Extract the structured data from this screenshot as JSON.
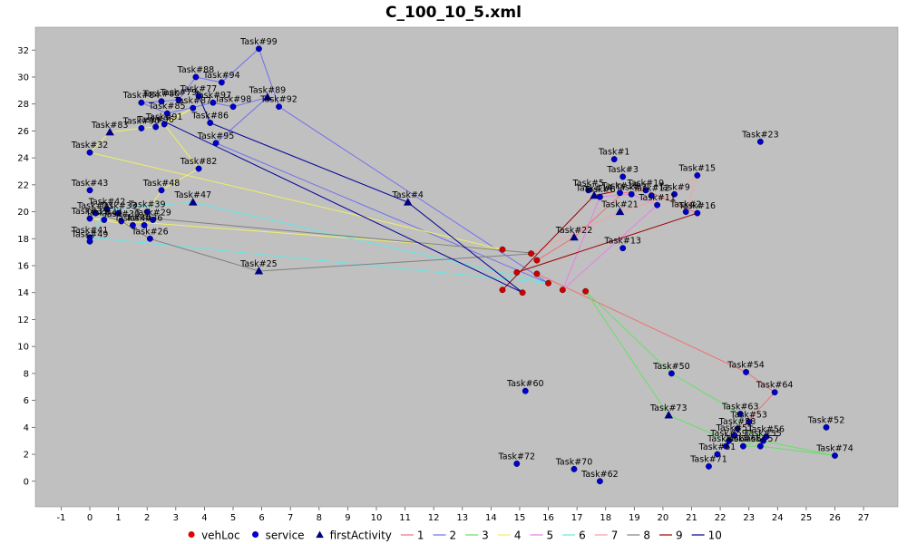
{
  "chart_data": {
    "type": "scatter",
    "title": "C_100_10_5.xml",
    "xlim": [
      -1.9,
      28.2
    ],
    "ylim": [
      -1.9,
      33.7
    ],
    "x_ticks": [
      -1,
      0,
      1,
      2,
      3,
      4,
      5,
      6,
      7,
      8,
      9,
      10,
      11,
      12,
      13,
      14,
      15,
      16,
      17,
      18,
      19,
      20,
      21,
      22,
      23,
      24,
      25,
      26,
      27
    ],
    "y_ticks": [
      0,
      2,
      4,
      6,
      8,
      10,
      12,
      14,
      16,
      18,
      20,
      22,
      24,
      26,
      28,
      30,
      32
    ],
    "grid": false,
    "legend_position": "bottom",
    "colors": {
      "background": "#c0c0c0",
      "vehLoc": "#cc0000",
      "service": "#0000cc",
      "firstActivity": "#000080"
    },
    "legend": [
      {
        "label": "vehLoc",
        "kind": "dot",
        "color": "#e60000"
      },
      {
        "label": "service",
        "kind": "dot",
        "color": "#0000cc"
      },
      {
        "label": "firstActivity",
        "kind": "triangle",
        "color": "#000080"
      },
      {
        "label": "1",
        "kind": "line",
        "color": "#f07070"
      },
      {
        "label": "2",
        "kind": "line",
        "color": "#6f6ff0"
      },
      {
        "label": "3",
        "kind": "line",
        "color": "#66e066"
      },
      {
        "label": "4",
        "kind": "line",
        "color": "#f0f066"
      },
      {
        "label": "5",
        "kind": "line",
        "color": "#e680e6"
      },
      {
        "label": "6",
        "kind": "line",
        "color": "#66e6e6"
      },
      {
        "label": "7",
        "kind": "line",
        "color": "#f5a0a0"
      },
      {
        "label": "8",
        "kind": "line",
        "color": "#808080"
      },
      {
        "label": "9",
        "kind": "line",
        "color": "#a00000"
      },
      {
        "label": "10",
        "kind": "line",
        "color": "#000099"
      }
    ],
    "vehLoc": [
      [
        14.4,
        17.2
      ],
      [
        15.4,
        16.9
      ],
      [
        15.6,
        16.4
      ],
      [
        14.9,
        15.5
      ],
      [
        15.6,
        15.4
      ],
      [
        16.0,
        14.7
      ],
      [
        16.5,
        14.2
      ],
      [
        14.4,
        14.2
      ],
      [
        15.1,
        14.0
      ],
      [
        17.3,
        14.1
      ]
    ],
    "services": [
      {
        "x": 5.9,
        "y": 32.1,
        "label": "Task#99"
      },
      {
        "x": 3.7,
        "y": 30.0,
        "label": "Task#88"
      },
      {
        "x": 4.6,
        "y": 29.6,
        "label": "Task#94"
      },
      {
        "x": 3.8,
        "y": 28.6,
        "label": "Task#77"
      },
      {
        "x": 1.8,
        "y": 28.1,
        "label": "Task#84"
      },
      {
        "x": 2.5,
        "y": 28.2,
        "label": "Task#80"
      },
      {
        "x": 3.1,
        "y": 28.3,
        "label": "Task#79"
      },
      {
        "x": 4.3,
        "y": 28.1,
        "label": "Task#97"
      },
      {
        "x": 5.0,
        "y": 27.8,
        "label": "Task#98"
      },
      {
        "x": 6.6,
        "y": 27.8,
        "label": "Task#92"
      },
      {
        "x": 2.7,
        "y": 27.3,
        "label": "Task#85"
      },
      {
        "x": 3.6,
        "y": 27.7,
        "label": "Task#87"
      },
      {
        "x": 2.3,
        "y": 26.3,
        "label": "Task#96"
      },
      {
        "x": 1.8,
        "y": 26.2,
        "label": "Task#90"
      },
      {
        "x": 2.6,
        "y": 26.5,
        "label": "Task#91"
      },
      {
        "x": 4.2,
        "y": 26.6,
        "label": "Task#86"
      },
      {
        "x": 4.4,
        "y": 25.1,
        "label": "Task#95"
      },
      {
        "x": 0.0,
        "y": 24.4,
        "label": "Task#32"
      },
      {
        "x": 3.8,
        "y": 23.2,
        "label": "Task#82"
      },
      {
        "x": 0.0,
        "y": 21.6,
        "label": "Task#43"
      },
      {
        "x": 2.5,
        "y": 21.6,
        "label": "Task#48"
      },
      {
        "x": 0.6,
        "y": 20.2,
        "label": "Task#42"
      },
      {
        "x": 0.2,
        "y": 19.9,
        "label": "Task#31"
      },
      {
        "x": 1.0,
        "y": 19.9,
        "label": "Task#33"
      },
      {
        "x": 2.0,
        "y": 20.0,
        "label": "Task#39"
      },
      {
        "x": 2.2,
        "y": 19.4,
        "label": "Task#29"
      },
      {
        "x": 0.0,
        "y": 19.5,
        "label": "Task#35"
      },
      {
        "x": 0.5,
        "y": 19.4,
        "label": "Task#44"
      },
      {
        "x": 1.1,
        "y": 19.3,
        "label": "Task#30"
      },
      {
        "x": 1.5,
        "y": 19.0,
        "label": "Task#40"
      },
      {
        "x": 1.9,
        "y": 19.0,
        "label": "Task#36"
      },
      {
        "x": 0.0,
        "y": 18.1,
        "label": "Task#41"
      },
      {
        "x": 0.0,
        "y": 17.8,
        "label": "Task#49"
      },
      {
        "x": 2.1,
        "y": 18.0,
        "label": "Task#26"
      },
      {
        "x": 18.3,
        "y": 23.9,
        "label": "Task#1"
      },
      {
        "x": 18.6,
        "y": 22.6,
        "label": "Task#3"
      },
      {
        "x": 17.4,
        "y": 21.6,
        "label": "Task#5"
      },
      {
        "x": 17.8,
        "y": 21.1,
        "label": "Task#6"
      },
      {
        "x": 18.5,
        "y": 21.4,
        "label": "Task#10"
      },
      {
        "x": 18.9,
        "y": 21.3,
        "label": "Task#7"
      },
      {
        "x": 19.4,
        "y": 21.6,
        "label": "Task#19"
      },
      {
        "x": 19.6,
        "y": 21.2,
        "label": "Task#12"
      },
      {
        "x": 20.4,
        "y": 21.3,
        "label": "Task#9"
      },
      {
        "x": 21.2,
        "y": 22.7,
        "label": "Task#15"
      },
      {
        "x": 19.8,
        "y": 20.5,
        "label": "Task#11"
      },
      {
        "x": 20.8,
        "y": 20.0,
        "label": "Task#2"
      },
      {
        "x": 21.2,
        "y": 19.9,
        "label": "Task#16"
      },
      {
        "x": 23.4,
        "y": 25.2,
        "label": "Task#23"
      },
      {
        "x": 18.6,
        "y": 17.3,
        "label": "Task#13"
      },
      {
        "x": 22.9,
        "y": 8.1,
        "label": "Task#54"
      },
      {
        "x": 20.3,
        "y": 8.0,
        "label": "Task#50"
      },
      {
        "x": 23.9,
        "y": 6.6,
        "label": "Task#64"
      },
      {
        "x": 15.2,
        "y": 6.7,
        "label": "Task#60"
      },
      {
        "x": 22.7,
        "y": 5.0,
        "label": "Task#63"
      },
      {
        "x": 23.0,
        "y": 4.4,
        "label": "Task#53"
      },
      {
        "x": 22.6,
        "y": 3.9,
        "label": "Task#58"
      },
      {
        "x": 22.5,
        "y": 3.4,
        "label": "Task#51"
      },
      {
        "x": 23.6,
        "y": 3.3,
        "label": "Task#56"
      },
      {
        "x": 23.5,
        "y": 3.0,
        "label": "Task#55"
      },
      {
        "x": 22.3,
        "y": 3.0,
        "label": "Task#59"
      },
      {
        "x": 22.8,
        "y": 2.6,
        "label": "Task#65"
      },
      {
        "x": 23.4,
        "y": 2.6,
        "label": "Task#57"
      },
      {
        "x": 22.2,
        "y": 2.6,
        "label": "Task#66"
      },
      {
        "x": 21.9,
        "y": 2.0,
        "label": "Task#61"
      },
      {
        "x": 21.6,
        "y": 1.1,
        "label": "Task#71"
      },
      {
        "x": 25.7,
        "y": 4.0,
        "label": "Task#52"
      },
      {
        "x": 26.0,
        "y": 1.9,
        "label": "Task#74"
      },
      {
        "x": 14.9,
        "y": 1.3,
        "label": "Task#72"
      },
      {
        "x": 16.9,
        "y": 0.9,
        "label": "Task#70"
      },
      {
        "x": 17.8,
        "y": 0.0,
        "label": "Task#62"
      }
    ],
    "first_activities": [
      {
        "x": 0.7,
        "y": 25.9,
        "label": "Task#83"
      },
      {
        "x": 6.2,
        "y": 28.5,
        "label": "Task#89"
      },
      {
        "x": 3.6,
        "y": 20.7,
        "label": "Task#47"
      },
      {
        "x": 5.9,
        "y": 15.6,
        "label": "Task#25"
      },
      {
        "x": 11.1,
        "y": 20.7,
        "label": "Task#4"
      },
      {
        "x": 17.6,
        "y": 21.2,
        "label": "Task#14"
      },
      {
        "x": 18.5,
        "y": 20.0,
        "label": "Task#21"
      },
      {
        "x": 16.9,
        "y": 18.1,
        "label": "Task#22"
      },
      {
        "x": 20.2,
        "y": 4.9,
        "label": "Task#73"
      }
    ],
    "routes": [
      {
        "name": "1",
        "color": "#f07070",
        "points": [
          [
            15.6,
            16.4
          ],
          [
            16.9,
            18.1
          ],
          [
            18.6,
            21.4
          ],
          [
            19.4,
            21.6
          ],
          [
            21.2,
            19.9
          ]
        ]
      },
      {
        "name": "1",
        "color": "#f07070",
        "points": [
          [
            15.6,
            15.4
          ],
          [
            22.9,
            8.1
          ],
          [
            23.9,
            6.6
          ],
          [
            22.5,
            3.4
          ],
          [
            22.2,
            2.6
          ]
        ]
      },
      {
        "name": "2",
        "color": "#6f6ff0",
        "points": [
          [
            16.0,
            14.7
          ],
          [
            6.6,
            27.8
          ],
          [
            5.9,
            32.1
          ],
          [
            4.6,
            29.6
          ],
          [
            3.7,
            30.0
          ],
          [
            3.1,
            28.3
          ],
          [
            2.5,
            28.2
          ],
          [
            1.8,
            28.1
          ],
          [
            2.7,
            27.3
          ],
          [
            4.3,
            28.1
          ],
          [
            5.0,
            27.8
          ],
          [
            6.2,
            28.5
          ],
          [
            4.4,
            25.1
          ],
          [
            16.0,
            14.7
          ]
        ]
      },
      {
        "name": "3",
        "color": "#66e066",
        "points": [
          [
            17.3,
            14.1
          ],
          [
            20.2,
            4.9
          ],
          [
            22.3,
            3.0
          ],
          [
            23.5,
            3.0
          ],
          [
            26.0,
            1.9
          ],
          [
            23.4,
            2.6
          ],
          [
            22.8,
            2.6
          ],
          [
            23.6,
            3.3
          ],
          [
            22.6,
            3.9
          ],
          [
            22.7,
            5.0
          ],
          [
            20.3,
            8.0
          ],
          [
            17.3,
            14.1
          ]
        ]
      },
      {
        "name": "4",
        "color": "#f0f066",
        "points": [
          [
            14.4,
            17.2
          ],
          [
            0.0,
            24.4
          ],
          [
            0.7,
            25.9
          ],
          [
            1.8,
            26.2
          ],
          [
            2.3,
            26.3
          ],
          [
            3.6,
            27.7
          ],
          [
            2.6,
            26.5
          ],
          [
            3.8,
            23.2
          ],
          [
            2.5,
            21.6
          ],
          [
            2.0,
            20.0
          ],
          [
            1.5,
            19.0
          ],
          [
            0.0,
            19.5
          ],
          [
            14.4,
            17.2
          ]
        ]
      },
      {
        "name": "5",
        "color": "#e680e6",
        "points": [
          [
            16.5,
            14.2
          ],
          [
            19.8,
            20.5
          ],
          [
            18.9,
            21.3
          ],
          [
            17.8,
            21.1
          ],
          [
            16.5,
            14.2
          ]
        ]
      },
      {
        "name": "6",
        "color": "#66e6e6",
        "points": [
          [
            16.0,
            14.7
          ],
          [
            3.6,
            20.7
          ],
          [
            0.6,
            20.2
          ],
          [
            0.0,
            18.1
          ],
          [
            16.0,
            14.7
          ]
        ]
      },
      {
        "name": "7",
        "color": "#f5a0a0",
        "points": [
          [
            15.4,
            16.9
          ],
          [
            18.5,
            20.0
          ],
          [
            20.4,
            21.3
          ],
          [
            21.2,
            22.7
          ],
          [
            20.8,
            20.0
          ]
        ]
      },
      {
        "name": "8",
        "color": "#808080",
        "points": [
          [
            15.6,
            16.9
          ],
          [
            0.2,
            19.9
          ],
          [
            1.1,
            19.3
          ],
          [
            2.1,
            18.0
          ],
          [
            5.9,
            15.6
          ],
          [
            15.6,
            16.9
          ]
        ]
      },
      {
        "name": "9",
        "color": "#a00000",
        "points": [
          [
            14.9,
            15.5
          ],
          [
            21.2,
            19.9
          ]
        ]
      },
      {
        "name": "9",
        "color": "#a00000",
        "points": [
          [
            14.4,
            14.2
          ],
          [
            17.6,
            21.2
          ],
          [
            18.3,
            21.5
          ]
        ]
      },
      {
        "name": "10",
        "color": "#000099",
        "points": [
          [
            15.1,
            14.0
          ],
          [
            11.1,
            20.7
          ],
          [
            4.2,
            26.6
          ],
          [
            3.8,
            28.6
          ]
        ]
      },
      {
        "name": "10",
        "color": "#000099",
        "points": [
          [
            15.1,
            14.0
          ],
          [
            2.3,
            27.0
          ]
        ]
      }
    ]
  }
}
